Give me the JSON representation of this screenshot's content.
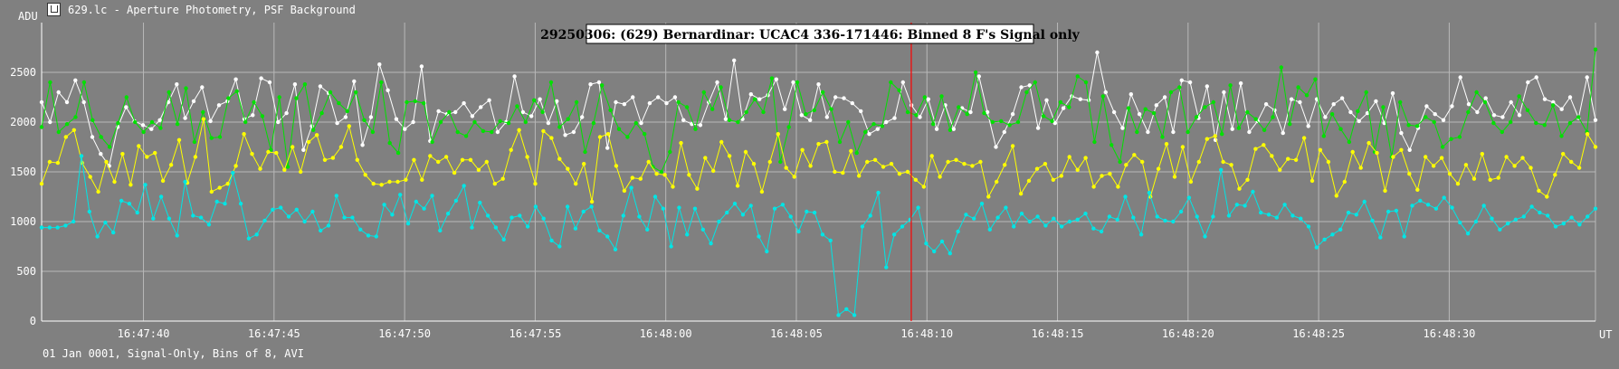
{
  "window": {
    "title": "629.lc - Aperture Photometry, PSF Background"
  },
  "footer": {
    "text": "01 Jan 0001, Signal-Only, Bins of 8, AVI"
  },
  "chart_data": {
    "type": "line",
    "title": "29250306: (629) Bernardinar: UCAC4 336-171446: Binned 8 F's Signal only",
    "ylabel": "ADU",
    "xlabel": "UT",
    "ylim": [
      0,
      3000
    ],
    "yticks": [
      0,
      500,
      1000,
      1500,
      2000,
      2500
    ],
    "xlim": [
      "16:47:36.1",
      "16:48:35.6"
    ],
    "xticks": [
      "16:47:40",
      "16:47:45",
      "16:47:50",
      "16:47:55",
      "16:48:00",
      "16:48:05",
      "16:48:10",
      "16:48:15",
      "16:48:20",
      "16:48:25",
      "16:48:30"
    ],
    "marker_time": "16:48:09.4",
    "grid": true,
    "colors": {
      "white": "#ffffff",
      "green": "#00e000",
      "yellow": "#ffff00",
      "cyan": "#00e5e5",
      "marker": "#ff0000"
    },
    "series": [
      {
        "color": "white",
        "x_start": "16:47:36.1",
        "x_end": "16:48:35.6",
        "values": [
          2200,
          2000,
          2300,
          2200,
          2420,
          2200,
          1850,
          1680,
          1560,
          1950,
          2150,
          2010,
          1970,
          1930,
          2020,
          2200,
          2380,
          2040,
          2210,
          2350,
          2010,
          2170,
          2210,
          2430,
          2030,
          2070,
          2440,
          2400,
          2000,
          2090,
          2380,
          1720,
          1960,
          2360,
          2290,
          1990,
          2050,
          2410,
          1770,
          2050,
          2580,
          2320,
          2030,
          1930,
          2000,
          2560,
          1810,
          2110,
          2080,
          2100,
          2190,
          2060,
          2150,
          2220,
          1900,
          2000,
          2460,
          2100,
          2060,
          2230,
          1990,
          2210,
          1870,
          1900,
          2050,
          2380,
          2400,
          1740,
          2200,
          2180,
          2250,
          1990,
          2190,
          2250,
          2190,
          2250,
          2020,
          1980,
          1970,
          2200,
          2400,
          2030,
          2620,
          2030,
          2280,
          2230,
          2270,
          2430,
          2130,
          2400,
          2070,
          2020,
          2380,
          2050,
          2250,
          2240,
          2190,
          2110,
          1880,
          1930,
          2000,
          2040,
          2400,
          2170,
          2050,
          2230,
          1930,
          2170,
          1930,
          2140,
          2100,
          2460,
          2100,
          1750,
          1900,
          2080,
          2350,
          2370,
          1940,
          2220,
          1990,
          2140,
          2260,
          2230,
          2220,
          2700,
          2300,
          2100,
          1940,
          2280,
          2080,
          1900,
          2170,
          2250,
          1900,
          2420,
          2400,
          2040,
          2360,
          1820,
          2300,
          1930,
          2390,
          1900,
          2010,
          2180,
          2120,
          1890,
          2230,
          2200,
          1960,
          2230,
          2050,
          2180,
          2240,
          2100,
          2010,
          2090,
          2210,
          1990,
          2290,
          1890,
          1720,
          1940,
          2160,
          2080,
          2020,
          2160,
          2450,
          2180,
          2100,
          2240,
          2070,
          2050,
          2200,
          2070,
          2400,
          2450,
          2230,
          2200,
          2130,
          2250,
          2040,
          2450,
          2020
        ]
      },
      {
        "color": "green",
        "x_start": "16:47:36.1",
        "x_end": "16:48:35.6",
        "values": [
          1950,
          2400,
          1900,
          1980,
          2050,
          2400,
          2020,
          1850,
          1750,
          1990,
          2250,
          2000,
          1900,
          2000,
          1940,
          2300,
          1980,
          2340,
          1800,
          2100,
          1840,
          1850,
          2240,
          2310,
          2000,
          2200,
          2060,
          1720,
          2250,
          1550,
          2240,
          2380,
          1920,
          2090,
          2300,
          2190,
          2110,
          2300,
          2020,
          1900,
          2400,
          1790,
          1690,
          2200,
          2210,
          2190,
          1800,
          2000,
          2100,
          1900,
          1860,
          2000,
          1910,
          1900,
          2010,
          1990,
          2160,
          2000,
          2220,
          2100,
          2400,
          1950,
          2030,
          2200,
          1700,
          1990,
          2370,
          2120,
          1930,
          1850,
          1990,
          1880,
          1550,
          1500,
          1700,
          2200,
          2150,
          1930,
          2300,
          2130,
          2350,
          2020,
          2000,
          2100,
          2230,
          2100,
          2440,
          1600,
          1950,
          2400,
          2080,
          2120,
          2300,
          2130,
          1800,
          2000,
          1690,
          1900,
          1980,
          1960,
          2400,
          2320,
          2100,
          2070,
          2250,
          1980,
          2260,
          1920,
          2150,
          2080,
          2500,
          2090,
          2000,
          2010,
          1970,
          2000,
          2300,
          2400,
          2060,
          2010,
          2200,
          2150,
          2460,
          2400,
          1800,
          2260,
          1770,
          1600,
          2140,
          1900,
          2130,
          2090,
          1850,
          2300,
          2350,
          1900,
          2050,
          2150,
          2200,
          1880,
          2370,
          1940,
          2100,
          2030,
          1920,
          2050,
          2550,
          1980,
          2350,
          2270,
          2430,
          1860,
          2080,
          1930,
          1800,
          2110,
          2300,
          1700,
          2150,
          1650,
          2200,
          1970,
          1960,
          2050,
          2000,
          1750,
          1830,
          1850,
          2100,
          2300,
          2200,
          1990,
          1900,
          2000,
          2260,
          2120,
          1990,
          1970,
          2170,
          1860,
          1990,
          2050,
          1900,
          2730
        ]
      },
      {
        "color": "yellow",
        "x_start": "16:47:36.1",
        "x_end": "16:48:35.6",
        "values": [
          1380,
          1600,
          1590,
          1850,
          1920,
          1590,
          1450,
          1300,
          1600,
          1400,
          1680,
          1370,
          1760,
          1650,
          1690,
          1410,
          1570,
          1820,
          1390,
          1650,
          2030,
          1300,
          1340,
          1380,
          1560,
          1880,
          1680,
          1530,
          1700,
          1690,
          1520,
          1750,
          1500,
          1800,
          1870,
          1620,
          1640,
          1750,
          1960,
          1620,
          1470,
          1380,
          1370,
          1400,
          1400,
          1420,
          1620,
          1420,
          1660,
          1600,
          1650,
          1490,
          1620,
          1620,
          1520,
          1600,
          1380,
          1430,
          1720,
          1920,
          1650,
          1380,
          1910,
          1840,
          1630,
          1530,
          1380,
          1580,
          1200,
          1850,
          1880,
          1560,
          1310,
          1440,
          1430,
          1600,
          1480,
          1470,
          1350,
          1790,
          1470,
          1330,
          1640,
          1510,
          1800,
          1660,
          1360,
          1700,
          1580,
          1300,
          1600,
          1880,
          1540,
          1450,
          1720,
          1560,
          1780,
          1800,
          1500,
          1490,
          1710,
          1460,
          1600,
          1620,
          1550,
          1580,
          1480,
          1500,
          1420,
          1350,
          1660,
          1450,
          1600,
          1620,
          1580,
          1560,
          1600,
          1250,
          1400,
          1570,
          1760,
          1280,
          1410,
          1530,
          1580,
          1420,
          1460,
          1650,
          1520,
          1640,
          1350,
          1460,
          1480,
          1350,
          1570,
          1670,
          1600,
          1250,
          1530,
          1780,
          1450,
          1750,
          1400,
          1600,
          1830,
          1860,
          1600,
          1570,
          1330,
          1420,
          1730,
          1770,
          1660,
          1520,
          1630,
          1620,
          1840,
          1410,
          1720,
          1600,
          1260,
          1400,
          1700,
          1540,
          1790,
          1690,
          1310,
          1650,
          1720,
          1480,
          1320,
          1650,
          1560,
          1640,
          1480,
          1380,
          1570,
          1430,
          1680,
          1420,
          1440,
          1650,
          1560,
          1640,
          1540,
          1310,
          1250,
          1470,
          1680,
          1600,
          1540,
          1880,
          1750
        ]
      },
      {
        "color": "cyan",
        "x_start": "16:47:36.1",
        "x_end": "16:48:35.6",
        "values": [
          940,
          940,
          940,
          960,
          1000,
          1660,
          1100,
          850,
          990,
          890,
          1210,
          1180,
          1090,
          1370,
          1030,
          1250,
          1030,
          860,
          1400,
          1060,
          1040,
          970,
          1200,
          1180,
          1490,
          1180,
          830,
          870,
          1010,
          1120,
          1140,
          1050,
          1120,
          1000,
          1100,
          910,
          960,
          1260,
          1040,
          1040,
          920,
          860,
          850,
          1170,
          1070,
          1270,
          980,
          1200,
          1130,
          1260,
          910,
          1080,
          1210,
          1360,
          940,
          1190,
          1060,
          940,
          820,
          1040,
          1060,
          950,
          1150,
          1030,
          810,
          750,
          1150,
          930,
          1100,
          1150,
          910,
          850,
          720,
          1060,
          1340,
          1050,
          920,
          1250,
          1130,
          750,
          1140,
          870,
          1130,
          920,
          780,
          1000,
          1090,
          1180,
          1070,
          1160,
          850,
          700,
          1130,
          1170,
          1050,
          900,
          1100,
          1090,
          870,
          810,
          60,
          120,
          60,
          950,
          1060,
          1290,
          540,
          870,
          950,
          1020,
          1140,
          780,
          700,
          800,
          680,
          900,
          1070,
          1030,
          1180,
          920,
          1040,
          1140,
          950,
          1080,
          1000,
          1050,
          960,
          1030,
          950,
          1000,
          1020,
          1080,
          930,
          900,
          1050,
          1020,
          1250,
          1040,
          870,
          1290,
          1050,
          1010,
          1000,
          1100,
          1240,
          1050,
          850,
          1050,
          1520,
          1060,
          1170,
          1160,
          1300,
          1090,
          1070,
          1040,
          1170,
          1060,
          1030,
          950,
          740,
          820,
          870,
          920,
          1090,
          1070,
          1200,
          1010,
          840,
          1100,
          1110,
          850,
          1160,
          1210,
          1170,
          1130,
          1240,
          1140,
          990,
          880,
          1000,
          1160,
          1030,
          920,
          980,
          1020,
          1050,
          1150,
          1090,
          1060,
          950,
          980,
          1040,
          970,
          1050,
          1130
        ]
      }
    ]
  }
}
